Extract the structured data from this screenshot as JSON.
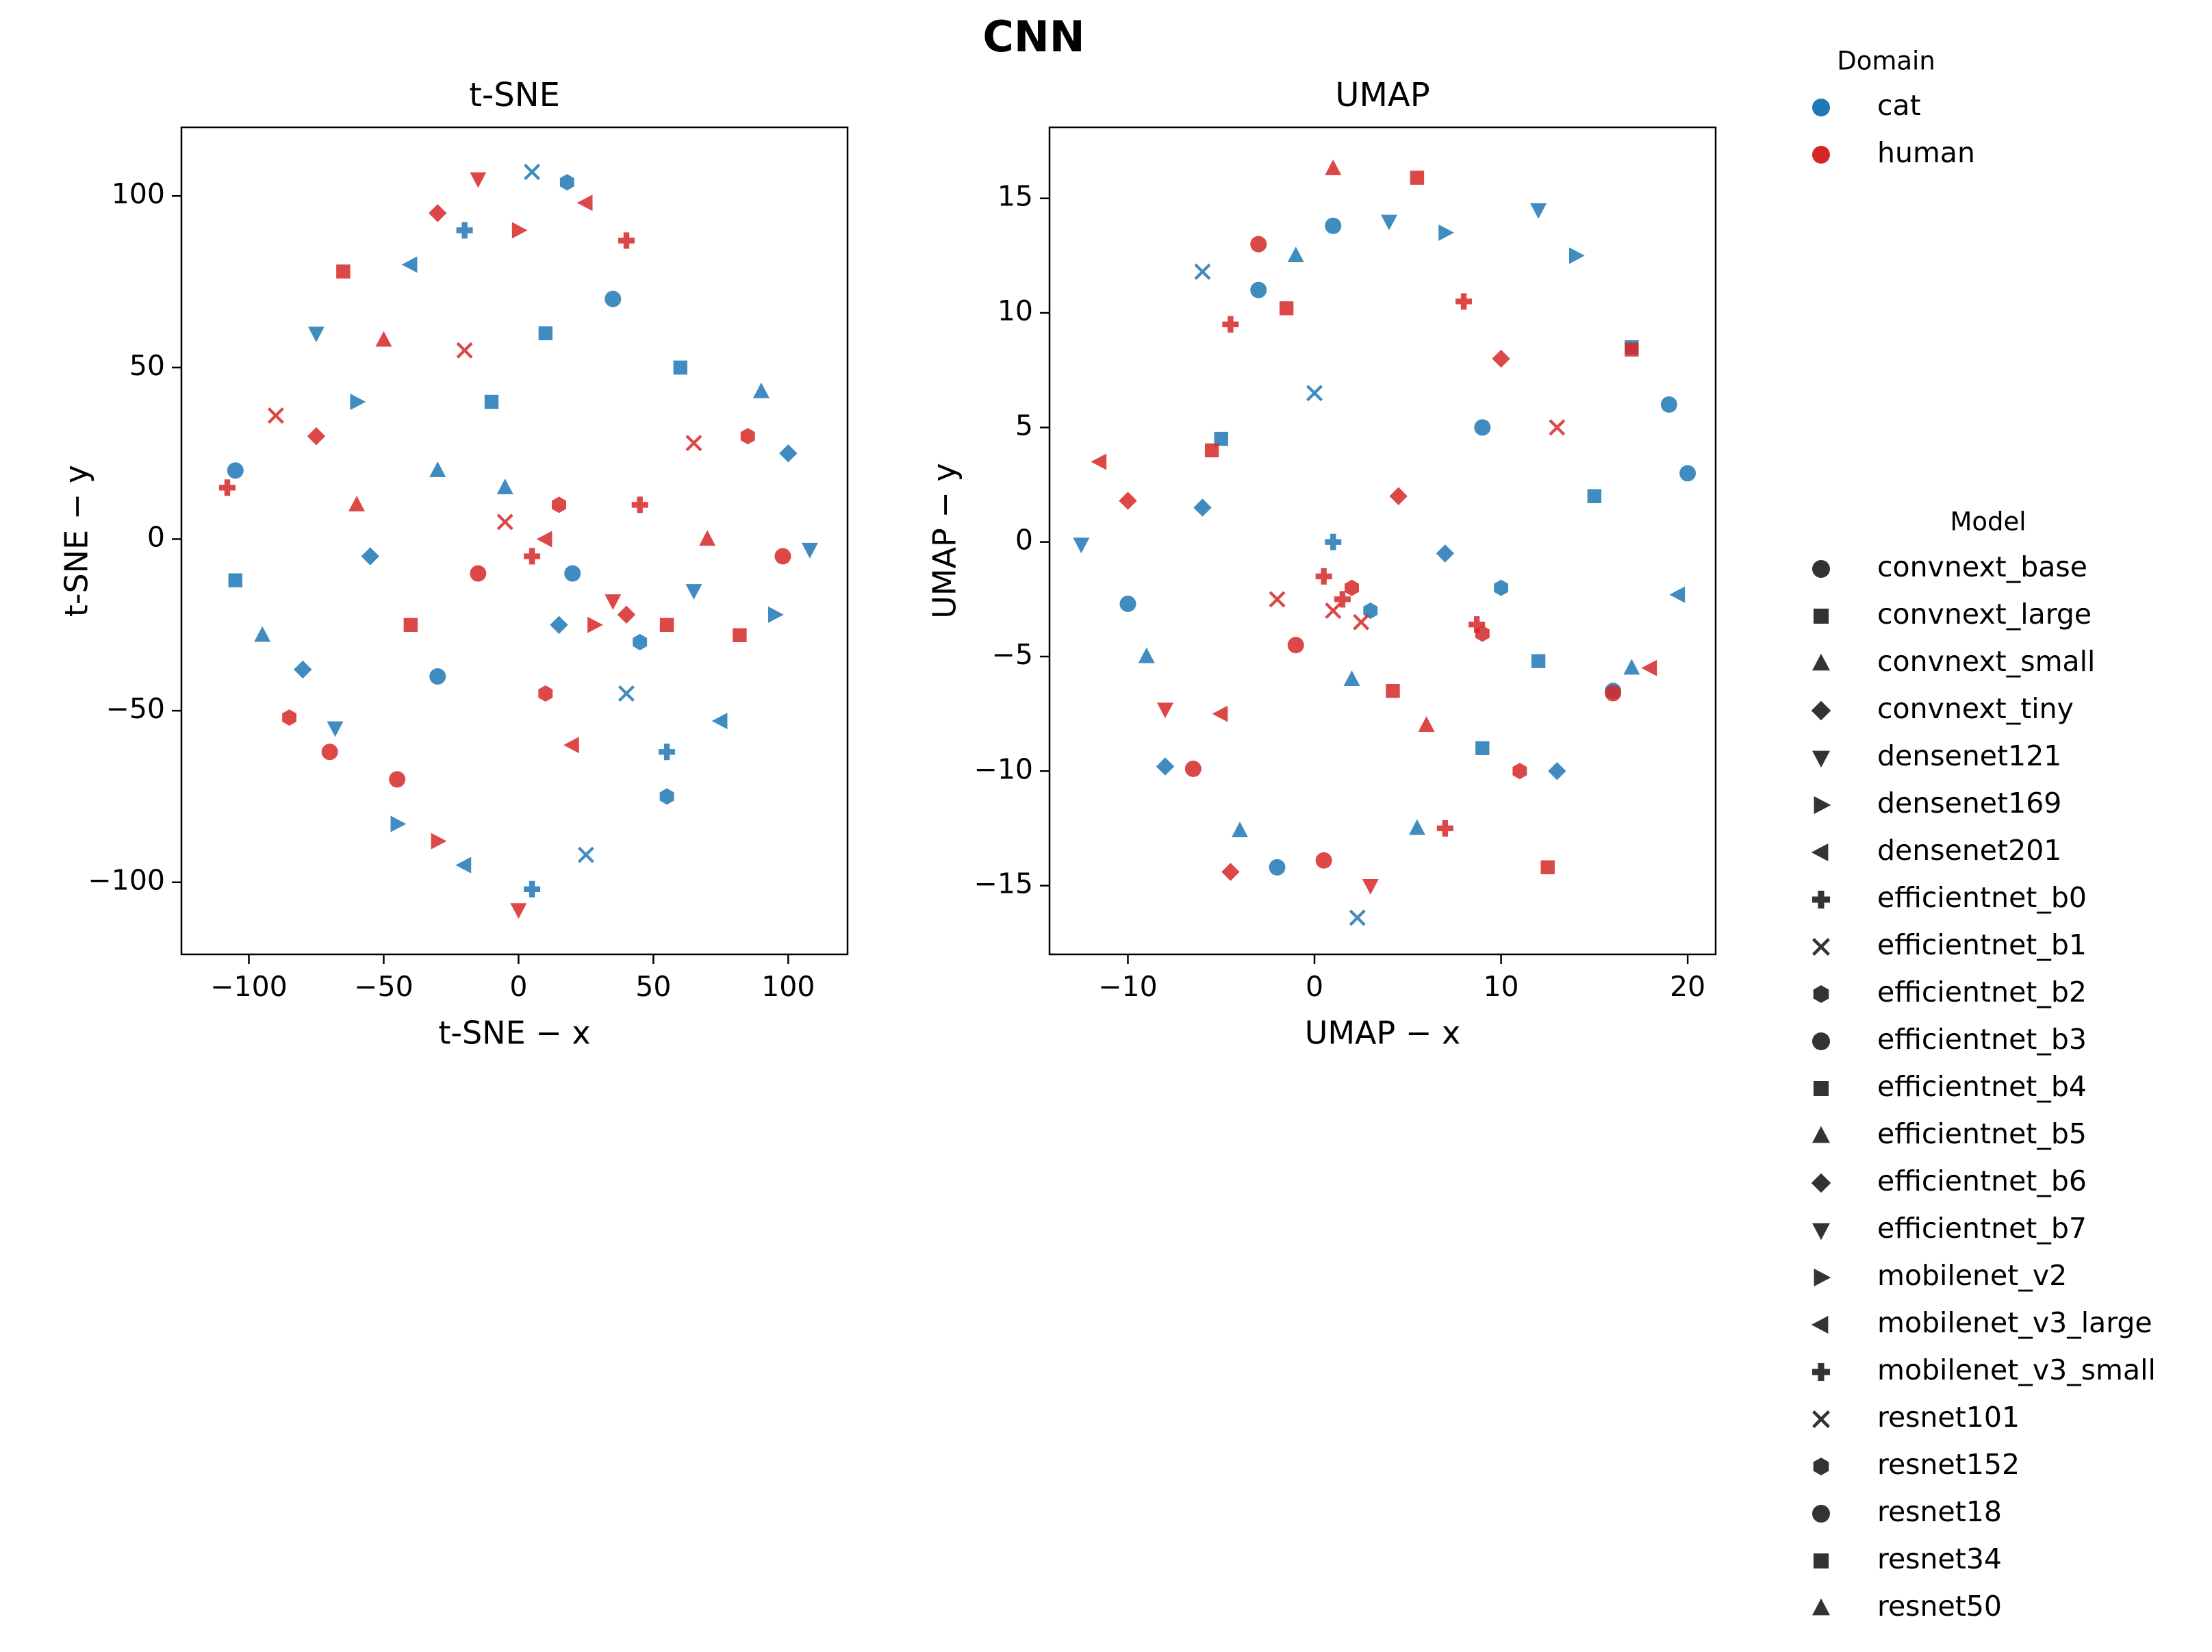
{
  "suptitle": "CNN",
  "legends": {
    "domain_title": "Domain",
    "model_title": "Model",
    "models": [
      {
        "name": "convnext_base",
        "marker": "o"
      },
      {
        "name": "convnext_large",
        "marker": "s"
      },
      {
        "name": "convnext_small",
        "marker": "^"
      },
      {
        "name": "convnext_tiny",
        "marker": "D"
      },
      {
        "name": "densenet121",
        "marker": "v"
      },
      {
        "name": "densenet169",
        "marker": ">"
      },
      {
        "name": "densenet201",
        "marker": "<"
      },
      {
        "name": "efficientnet_b0",
        "marker": "P"
      },
      {
        "name": "efficientnet_b1",
        "marker": "X"
      },
      {
        "name": "efficientnet_b2",
        "marker": "h"
      },
      {
        "name": "efficientnet_b3",
        "marker": "o"
      },
      {
        "name": "efficientnet_b4",
        "marker": "s"
      },
      {
        "name": "efficientnet_b5",
        "marker": "^"
      },
      {
        "name": "efficientnet_b6",
        "marker": "D"
      },
      {
        "name": "efficientnet_b7",
        "marker": "v"
      },
      {
        "name": "mobilenet_v2",
        "marker": ">"
      },
      {
        "name": "mobilenet_v3_large",
        "marker": "<"
      },
      {
        "name": "mobilenet_v3_small",
        "marker": "P"
      },
      {
        "name": "resnet101",
        "marker": "X"
      },
      {
        "name": "resnet152",
        "marker": "h"
      },
      {
        "name": "resnet18",
        "marker": "o"
      },
      {
        "name": "resnet34",
        "marker": "s"
      },
      {
        "name": "resnet50",
        "marker": "^"
      }
    ]
  },
  "chart_data": [
    {
      "type": "scatter",
      "title": "t-SNE",
      "x_label": "t-SNE − x",
      "y_label": "t-SNE − y",
      "xlim": [
        -125,
        122
      ],
      "ylim": [
        -121,
        120
      ],
      "xticks": [
        {
          "value": -100,
          "label": "−100"
        },
        {
          "value": -50,
          "label": "−50"
        },
        0,
        50,
        100
      ],
      "yticks": [
        {
          "value": -100,
          "label": "−100"
        },
        {
          "value": -50,
          "label": "−50"
        },
        0,
        50,
        100
      ],
      "series": [
        {
          "name": "cat",
          "color": "#1f77b4",
          "x": [
            -105,
            -105,
            -95,
            -80,
            -75,
            -60,
            -40,
            -20,
            5,
            18,
            35,
            60,
            90,
            100,
            108,
            95,
            75,
            55,
            40,
            45,
            20,
            -10,
            -30,
            -55,
            -68,
            -45,
            -20,
            5,
            25,
            55,
            -30,
            10,
            -5,
            15,
            65
          ],
          "values": [
            20,
            -12,
            -28,
            -38,
            60,
            40,
            80,
            90,
            107,
            104,
            70,
            50,
            43,
            25,
            -3,
            -22,
            -53,
            -62,
            -45,
            -30,
            -10,
            40,
            20,
            -5,
            -55,
            -83,
            -95,
            -102,
            -92,
            -75,
            -40,
            60,
            15,
            -25,
            -15
          ],
          "markers": [
            "o",
            "s",
            "^",
            "D",
            "v",
            ">",
            "<",
            "P",
            "X",
            "h",
            "o",
            "s",
            "^",
            "D",
            "v",
            ">",
            "<",
            "P",
            "X",
            "h",
            "o",
            "s",
            "^",
            "D",
            "v",
            ">",
            "<",
            "P",
            "X",
            "h",
            "o",
            "s",
            "^",
            "D",
            "v"
          ]
        },
        {
          "name": "human",
          "color": "#d62728",
          "x": [
            -108,
            -90,
            -85,
            -70,
            -65,
            -50,
            -30,
            -15,
            0,
            25,
            40,
            65,
            85,
            98,
            82,
            70,
            40,
            35,
            28,
            10,
            5,
            -5,
            15,
            -15,
            -40,
            -60,
            -75,
            0,
            -30,
            20,
            45,
            -20,
            10,
            -45,
            55
          ],
          "values": [
            15,
            36,
            -52,
            -62,
            78,
            58,
            95,
            105,
            90,
            98,
            87,
            28,
            30,
            -5,
            -28,
            0,
            -22,
            -18,
            -25,
            0,
            -5,
            5,
            10,
            -10,
            -25,
            10,
            30,
            -108,
            -88,
            -60,
            10,
            55,
            -45,
            -70,
            -25
          ],
          "markers": [
            "P",
            "X",
            "h",
            "o",
            "s",
            "^",
            "D",
            "v",
            ">",
            "<",
            "P",
            "X",
            "h",
            "o",
            "s",
            "^",
            "D",
            "v",
            ">",
            "<",
            "P",
            "X",
            "h",
            "o",
            "s",
            "^",
            "D",
            "v",
            ">",
            "<",
            "P",
            "X",
            "h",
            "o",
            "s"
          ]
        }
      ]
    },
    {
      "type": "scatter",
      "title": "UMAP",
      "x_label": "UMAP − x",
      "y_label": "UMAP − y",
      "xlim": [
        -14.2,
        21.5
      ],
      "ylim": [
        -18,
        18.1
      ],
      "xticks": [
        {
          "value": -10,
          "label": "−10"
        },
        0,
        10,
        20
      ],
      "yticks": [
        {
          "value": -15,
          "label": "−15"
        },
        {
          "value": -10,
          "label": "−10"
        },
        {
          "value": -5,
          "label": "−5"
        },
        0,
        5,
        10,
        15
      ],
      "series": [
        {
          "name": "cat",
          "color": "#1f77b4",
          "x": [
            -12.5,
            -10,
            -9,
            -8,
            -6,
            -5,
            -3,
            -1,
            1,
            4,
            7,
            12,
            14,
            17,
            19,
            20,
            19.5,
            17,
            16,
            12,
            10,
            7,
            1,
            2,
            -2,
            2.3,
            5.5,
            9,
            13,
            -4,
            15,
            9,
            3,
            0,
            -6
          ],
          "values": [
            -0.1,
            -2.7,
            -5,
            -9.8,
            11.8,
            4.5,
            11,
            12.5,
            13.8,
            14,
            13.5,
            14.5,
            12.5,
            8.5,
            6,
            3,
            -2.3,
            -5.5,
            -6.5,
            -5.2,
            -2,
            -0.5,
            0,
            -6,
            -14.2,
            -16.4,
            -12.5,
            -9,
            -10,
            -12.6,
            2,
            5,
            -3,
            6.5,
            1.5
          ],
          "markers": [
            "v",
            "o",
            "^",
            "D",
            "X",
            "s",
            "o",
            "^",
            "o",
            "v",
            ">",
            "v",
            ">",
            "s",
            "o",
            "o",
            "<",
            "^",
            "o",
            "s",
            "h",
            "D",
            "P",
            "^",
            "o",
            "X",
            "^",
            "s",
            "D",
            "^",
            "s",
            "o",
            "h",
            "X",
            "D"
          ]
        },
        {
          "name": "human",
          "color": "#d62728",
          "x": [
            -11.5,
            -10,
            -8,
            -6.5,
            -5.5,
            -4.5,
            -3,
            -1.5,
            1,
            5.5,
            8,
            10,
            13,
            16,
            18,
            17,
            9,
            8.7,
            1.5,
            1,
            2,
            0.5,
            2.5,
            -1,
            -5,
            -4.5,
            0.5,
            3,
            7,
            12.5,
            4.2,
            4.5,
            6,
            -2,
            11
          ],
          "values": [
            3.5,
            1.8,
            -7.3,
            -9.9,
            4,
            9.5,
            13,
            10.2,
            16.3,
            15.9,
            10.5,
            8,
            5,
            -6.6,
            -5.5,
            8.4,
            -4,
            -3.6,
            -2.5,
            -3,
            -2,
            -1.5,
            -3.5,
            -4.5,
            -7.5,
            -14.4,
            -13.9,
            -15,
            -12.5,
            -14.2,
            -6.5,
            2,
            -8,
            -2.5,
            -10
          ],
          "markers": [
            "<",
            "D",
            "v",
            "o",
            "s",
            "P",
            "o",
            "s",
            "^",
            "s",
            "P",
            "D",
            "X",
            "o",
            "<",
            "s",
            "h",
            "P",
            "P",
            "X",
            "h",
            "P",
            "X",
            "o",
            "<",
            "D",
            "o",
            "v",
            "P",
            "s",
            "s",
            "D",
            "^",
            "X",
            "h"
          ]
        }
      ]
    }
  ]
}
